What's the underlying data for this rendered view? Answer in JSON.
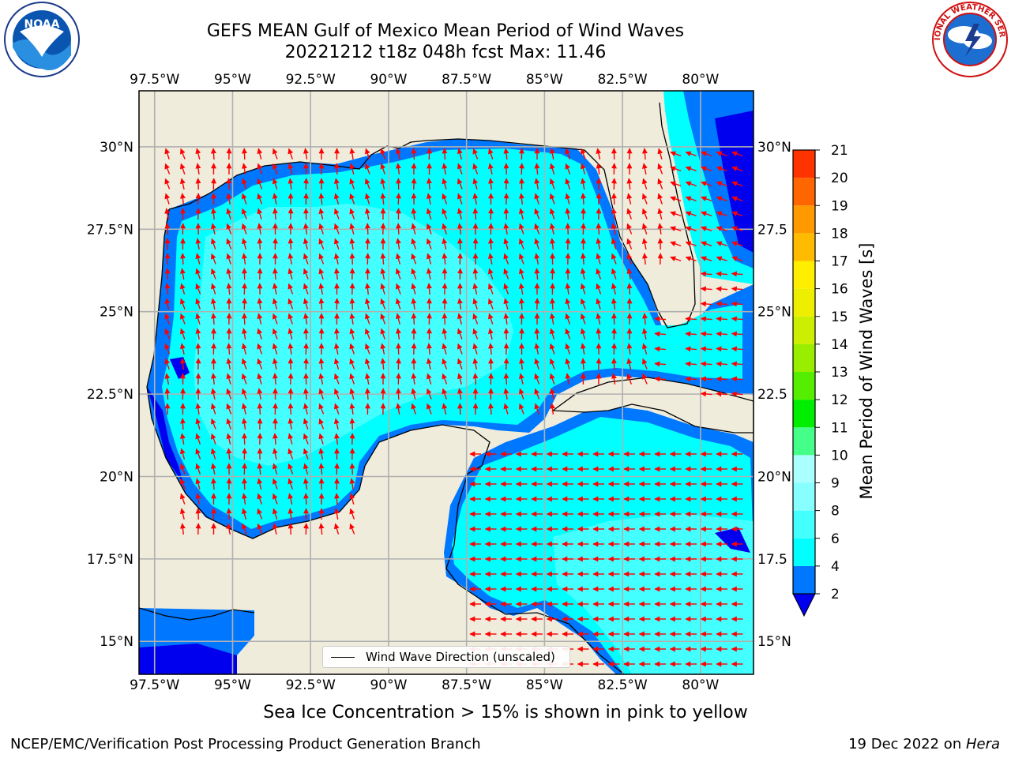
{
  "title": {
    "line1": "GEFS MEAN Gulf of Mexico Mean Period of Wind Waves",
    "line2": "20221212 t18z 048h fcst   Max: 11.46"
  },
  "logos": {
    "left": {
      "icon": "noaa-logo-icon",
      "text": "NOAA"
    },
    "right": {
      "icon": "nws-logo-icon",
      "text": "NATIONAL WEATHER SERVICE"
    }
  },
  "axes": {
    "lon_labels": [
      "97.5°W",
      "95°W",
      "92.5°W",
      "90°W",
      "87.5°W",
      "85°W",
      "82.5°W",
      "80°W"
    ],
    "lon_values": [
      -97.5,
      -95,
      -92.5,
      -90,
      -87.5,
      -85,
      -82.5,
      -80
    ],
    "lat_labels_left": [
      "30°N",
      "27.5°N",
      "25°N",
      "22.5°N",
      "20°N",
      "17.5°N",
      "15°N"
    ],
    "lat_labels_right": [
      "30°N",
      "27.5",
      "25°N",
      "22.5",
      "20°N",
      "17.5",
      "15°N"
    ],
    "lat_values": [
      30,
      27.5,
      25,
      22.5,
      20,
      17.5,
      15
    ],
    "lon_range": [
      -98,
      -78.3
    ],
    "lat_range": [
      14,
      31.7
    ]
  },
  "legend": {
    "label": "Wind Wave Direction (unscaled)"
  },
  "colorbar": {
    "label": "Mean Period of Wind Waves [s]",
    "ticks": [
      "2",
      "4",
      "6",
      "8",
      "9",
      "10",
      "11",
      "12",
      "13",
      "14",
      "15",
      "16",
      "17",
      "18",
      "19",
      "20",
      "21"
    ],
    "levels": [
      2,
      4,
      6,
      8,
      9,
      10,
      11,
      12,
      13,
      14,
      15,
      16,
      17,
      18,
      19,
      20,
      21
    ],
    "colors": [
      "#0077ff",
      "#00ffff",
      "#44ffff",
      "#88ffff",
      "#aaffff",
      "#44ff88",
      "#00ee00",
      "#55ee00",
      "#99ee00",
      "#ccee00",
      "#eeee00",
      "#ffee00",
      "#ffbb00",
      "#ff9900",
      "#ff6600",
      "#ff3300",
      "#ff0000"
    ],
    "under_color": "#0000ee"
  },
  "colors": {
    "land": "#efecdc",
    "ocean_low": "#0000ee",
    "arrow": "#ff0000",
    "grid": "#b0b0b0"
  },
  "subtitle": "Sea Ice Concentration > 15% is shown in pink to yellow",
  "footer": {
    "left": "NCEP/EMC/Verification Post Processing Product Generation Branch",
    "right_date": "19 Dec 2022 on ",
    "right_host": "Hera"
  }
}
